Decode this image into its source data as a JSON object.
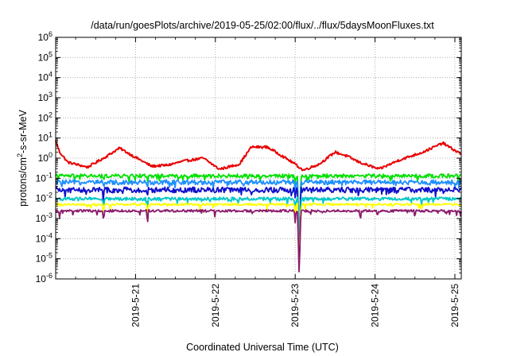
{
  "chart_data": {
    "type": "line",
    "title": "/data/run/goesPlots/archive/2019-05-25/02:00/flux/../flux/5daysMoonFluxes.txt",
    "xlabel": "Coordinated Universal Time (UTC)",
    "ylabel_parts": {
      "base": "protons/cm",
      "sup": "2",
      "rest": "-s-sr-MeV"
    },
    "yscale": "log",
    "ylim_exp": [
      -6,
      6
    ],
    "y_tick_exponents": [
      -6,
      -5,
      -4,
      -3,
      -2,
      -1,
      0,
      1,
      2,
      3,
      4,
      5,
      6
    ],
    "y_tick_base": "10",
    "xlim_days": [
      0.0,
      5.08
    ],
    "x_tick_labels": [
      "2019-5-21",
      "2019-5-22",
      "2019-5-23",
      "2019-5-24",
      "2019-5-25"
    ],
    "x_tick_days": [
      1,
      2,
      3,
      4,
      5
    ],
    "grid": true,
    "series": [
      {
        "color": "#e80000",
        "base": 0.5,
        "amp": 0.45,
        "noise": 0.06,
        "spike": 0,
        "keypoints": [
          [
            0.0,
            0.85
          ],
          [
            0.05,
            0.3
          ],
          [
            0.15,
            -0.2
          ],
          [
            0.4,
            -0.45
          ],
          [
            0.6,
            0.0
          ],
          [
            0.8,
            0.5
          ],
          [
            0.95,
            0.15
          ],
          [
            1.2,
            -0.4
          ],
          [
            1.4,
            -0.35
          ],
          [
            1.6,
            -0.15
          ],
          [
            1.85,
            0.0
          ],
          [
            2.05,
            -0.55
          ],
          [
            2.3,
            -0.3
          ],
          [
            2.45,
            0.55
          ],
          [
            2.65,
            0.55
          ],
          [
            2.8,
            0.2
          ],
          [
            3.0,
            -0.3
          ],
          [
            3.1,
            -0.6
          ],
          [
            3.3,
            -0.3
          ],
          [
            3.5,
            0.3
          ],
          [
            3.65,
            0.1
          ],
          [
            3.8,
            -0.2
          ],
          [
            4.05,
            -0.55
          ],
          [
            4.3,
            -0.1
          ],
          [
            4.6,
            0.3
          ],
          [
            4.85,
            0.75
          ],
          [
            4.95,
            0.5
          ],
          [
            5.08,
            0.2
          ]
        ]
      },
      {
        "color": "#00e000",
        "level": -0.88,
        "noise": 0.09,
        "dips": [
          [
            0.6,
            0.3
          ],
          [
            1.15,
            0.3
          ],
          [
            3.0,
            0.4
          ],
          [
            3.05,
            4.3
          ]
        ]
      },
      {
        "color": "#1e90ff",
        "level": -1.2,
        "noise": 0.12,
        "dips": [
          [
            0.6,
            0.35
          ],
          [
            1.15,
            0.4
          ],
          [
            3.0,
            0.5
          ],
          [
            3.05,
            4.0
          ]
        ]
      },
      {
        "color": "#1010cc",
        "level": -1.58,
        "noise": 0.14,
        "dips": [
          [
            0.6,
            0.4
          ],
          [
            1.15,
            0.45
          ],
          [
            3.0,
            0.5
          ],
          [
            3.05,
            3.7
          ]
        ]
      },
      {
        "color": "#00c8c8",
        "level": -2.02,
        "noise": 0.08,
        "dips": [
          [
            0.6,
            0.4
          ],
          [
            1.15,
            0.5
          ],
          [
            3.0,
            0.5
          ],
          [
            3.05,
            3.5
          ]
        ]
      },
      {
        "color": "#ffff00",
        "level": -2.3,
        "noise": 0.05,
        "dips": [
          [
            0.6,
            0.45
          ],
          [
            1.15,
            0.5
          ],
          [
            3.0,
            0.55
          ],
          [
            3.05,
            3.4
          ]
        ]
      },
      {
        "color": "#8b1a6b",
        "level": -2.62,
        "noise": 0.06,
        "dips": [
          [
            0.05,
            0.4
          ],
          [
            0.6,
            0.45
          ],
          [
            1.15,
            0.7
          ],
          [
            3.0,
            0.6
          ],
          [
            3.05,
            3.3
          ],
          [
            3.82,
            0.3
          ],
          [
            4.5,
            0.3
          ]
        ]
      }
    ]
  }
}
